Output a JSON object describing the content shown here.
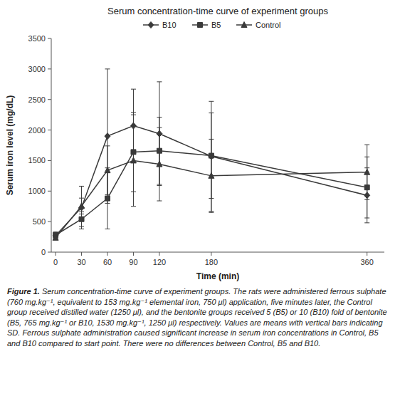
{
  "chart_data": {
    "type": "line",
    "title": "Serum concentration-time curve of experiment groups",
    "xlabel": "Time (min)",
    "ylabel": "Serum iron level (mg/dL)",
    "x": [
      0,
      30,
      60,
      90,
      120,
      180,
      360
    ],
    "series": [
      {
        "name": "B10",
        "color": "#3a3a3a",
        "marker": "diamond",
        "line_style": "solid",
        "values": [
          270,
          730,
          1900,
          2070,
          1940,
          1570,
          930
        ],
        "errors": [
          50,
          350,
          1100,
          600,
          850,
          900,
          450
        ]
      },
      {
        "name": "B5",
        "color": "#3a3a3a",
        "marker": "square",
        "line_style": "solid",
        "values": [
          280,
          540,
          880,
          1640,
          1660,
          1580,
          1060
        ],
        "errors": [
          50,
          120,
          500,
          650,
          550,
          700,
          500
        ]
      },
      {
        "name": "Control",
        "color": "#3a3a3a",
        "marker": "triangle",
        "line_style": "solid",
        "values": [
          235,
          755,
          1340,
          1500,
          1440,
          1250,
          1310
        ],
        "errors": [
          30,
          130,
          400,
          750,
          600,
          600,
          450
        ]
      }
    ],
    "xlim": [
      -5,
      380
    ],
    "ylim": [
      0,
      3500
    ],
    "xticks": [
      0,
      30,
      60,
      90,
      120,
      180,
      360
    ],
    "yticks": [
      0,
      500,
      1000,
      1500,
      2000,
      2500,
      3000,
      3500
    ],
    "grid": false,
    "legend": "top",
    "caption_bold": "Figure 1.",
    "caption_text": " Serum concentration-time curve of experiment groups. The rats were administered ferrous sulphate (760 mg.kg⁻¹, equivalent to 153 mg.kg⁻¹ elemental iron, 750 μl) application, five minutes later, the Control group received distilled water (1250 μl), and the bentonite groups received 5 (B5) or 10 (B10) fold of bentonite (B5, 765 mg.kg⁻¹ or B10, 1530 mg.kg⁻¹, 1250 μl) respectively. Values are means with vertical bars indicating SD. Ferrous sulphate administration caused significant increase in serum iron concentrations in Control, B5 and B10 compared to start point. There were no differences between Control, B5 and B10."
  }
}
